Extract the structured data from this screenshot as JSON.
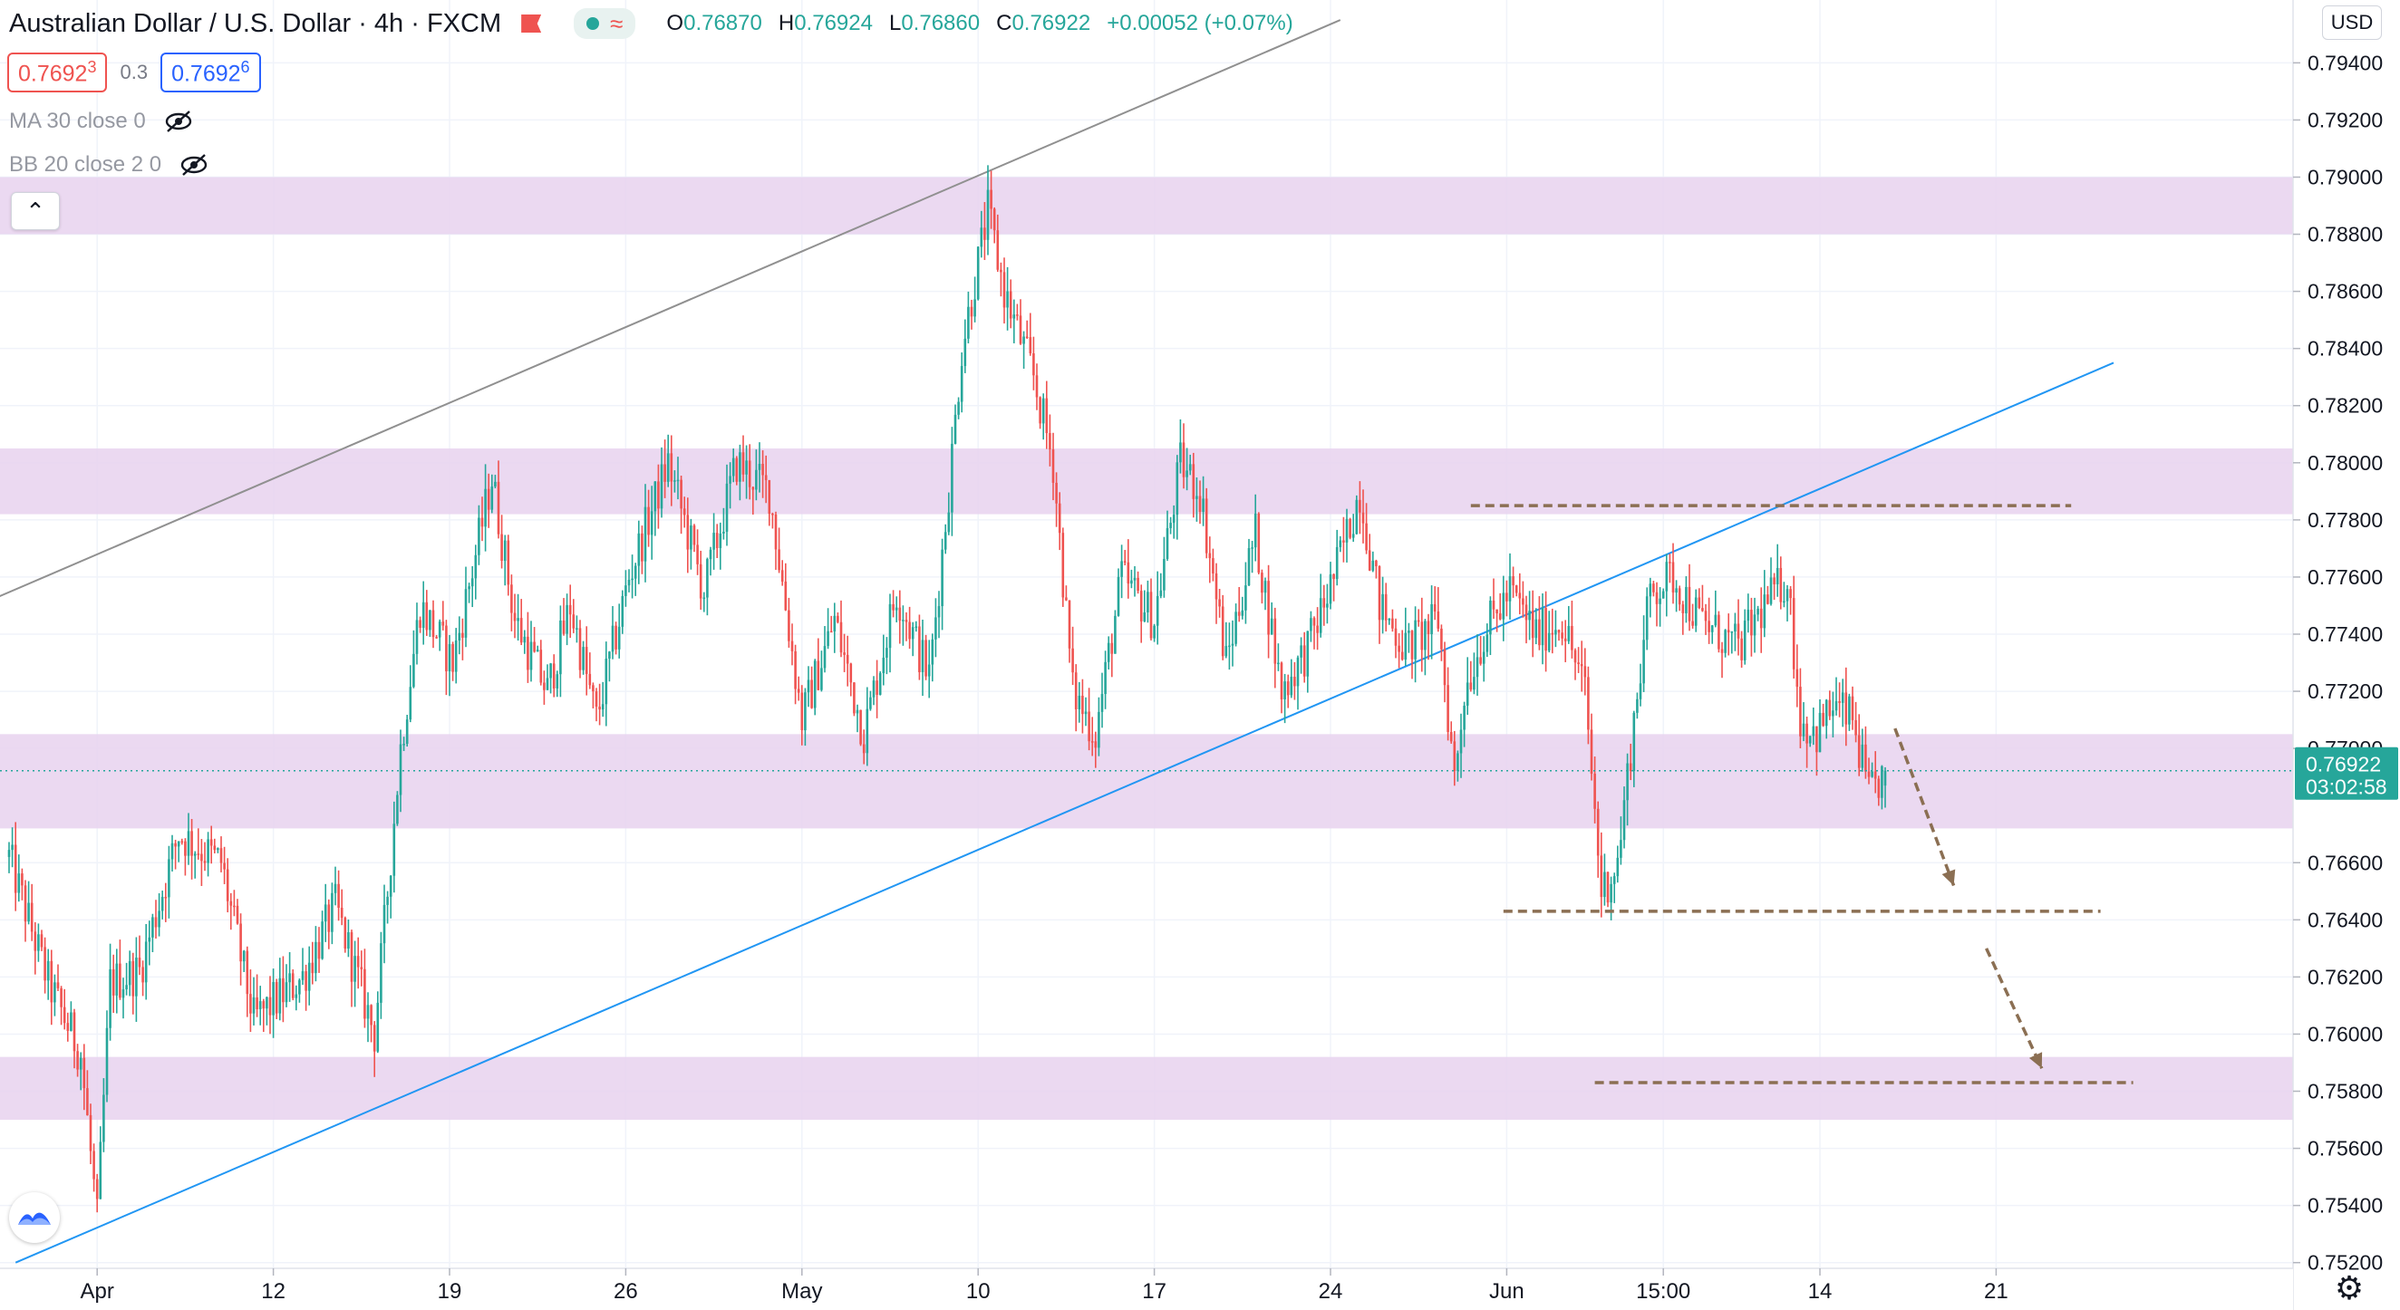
{
  "header": {
    "title": "Australian Dollar / U.S. Dollar",
    "interval": "4h",
    "exchange": "FXCM",
    "sep": "/",
    "ohlc": {
      "o_label": "O",
      "o": "0.76870",
      "h_label": "H",
      "h": "0.76924",
      "l_label": "L",
      "l": "0.76860",
      "c_label": "C",
      "c": "0.76922",
      "change": "+0.00052 (+0.07%)"
    },
    "wave_glyph": "≈"
  },
  "trade": {
    "sell_main": "0.7692",
    "sell_small": "3",
    "spread": "0.3",
    "buy_main": "0.7692",
    "buy_small": "6"
  },
  "indicators": [
    "MA 30 close 0",
    "BB 20 close 2 0"
  ],
  "collapse_glyph": "⌃",
  "axis": {
    "currency": "USD"
  },
  "colors": {
    "up": "#26a69a",
    "down": "#ef5350",
    "zone": "#e8d2ee",
    "trendline_blue": "#2196f3",
    "trendline_gray": "#909090",
    "dashed_levels": "#8b6f53",
    "price_line": "#26a69a"
  },
  "chart_data": {
    "type": "candlestick",
    "title": "Australian Dollar / U.S. Dollar",
    "symbol": "AUD/USD",
    "interval": "4h",
    "y_range": [
      0.7518,
      0.7962
    ],
    "y_ticks": [
      0.752,
      0.754,
      0.756,
      0.758,
      0.76,
      0.762,
      0.764,
      0.766,
      0.77,
      0.772,
      0.774,
      0.776,
      0.778,
      0.78,
      0.782,
      0.784,
      0.786,
      0.788,
      0.79,
      0.792,
      0.794
    ],
    "x_ticks": [
      {
        "label": "Apr",
        "bar": 27
      },
      {
        "label": "12",
        "bar": 81
      },
      {
        "label": "19",
        "bar": 135
      },
      {
        "label": "26",
        "bar": 189
      },
      {
        "label": "May",
        "bar": 243
      },
      {
        "label": "10",
        "bar": 297
      },
      {
        "label": "17",
        "bar": 351
      },
      {
        "label": "24",
        "bar": 405
      },
      {
        "label": "Jun",
        "bar": 459
      },
      {
        "label": "15:00",
        "bar": 507
      },
      {
        "label": "14",
        "bar": 555
      },
      {
        "label": "21",
        "bar": 609
      }
    ],
    "last_price": {
      "value": 0.76922,
      "label": "0.76922",
      "countdown": "03:02:58"
    },
    "key_bars": [
      {
        "bar": 0,
        "price": 0.7662
      },
      {
        "bar": 12,
        "price": 0.7618
      },
      {
        "bar": 22,
        "price": 0.7593
      },
      {
        "bar": 27,
        "price": 0.7535
      },
      {
        "bar": 31,
        "price": 0.7618
      },
      {
        "bar": 40,
        "price": 0.7622
      },
      {
        "bar": 52,
        "price": 0.767
      },
      {
        "bar": 65,
        "price": 0.766
      },
      {
        "bar": 75,
        "price": 0.7605
      },
      {
        "bar": 90,
        "price": 0.762
      },
      {
        "bar": 100,
        "price": 0.7645
      },
      {
        "bar": 112,
        "price": 0.76
      },
      {
        "bar": 120,
        "price": 0.77
      },
      {
        "bar": 126,
        "price": 0.775
      },
      {
        "bar": 136,
        "price": 0.773
      },
      {
        "bar": 148,
        "price": 0.7795
      },
      {
        "bar": 155,
        "price": 0.7745
      },
      {
        "bar": 165,
        "price": 0.772
      },
      {
        "bar": 172,
        "price": 0.775
      },
      {
        "bar": 180,
        "price": 0.771
      },
      {
        "bar": 190,
        "price": 0.776
      },
      {
        "bar": 202,
        "price": 0.78
      },
      {
        "bar": 213,
        "price": 0.7755
      },
      {
        "bar": 223,
        "price": 0.78
      },
      {
        "bar": 233,
        "price": 0.779
      },
      {
        "bar": 243,
        "price": 0.771
      },
      {
        "bar": 253,
        "price": 0.7745
      },
      {
        "bar": 262,
        "price": 0.7705
      },
      {
        "bar": 272,
        "price": 0.7755
      },
      {
        "bar": 282,
        "price": 0.7725
      },
      {
        "bar": 288,
        "price": 0.779
      },
      {
        "bar": 292,
        "price": 0.784
      },
      {
        "bar": 300,
        "price": 0.7888
      },
      {
        "bar": 305,
        "price": 0.786
      },
      {
        "bar": 314,
        "price": 0.783
      },
      {
        "bar": 320,
        "price": 0.78
      },
      {
        "bar": 326,
        "price": 0.772
      },
      {
        "bar": 333,
        "price": 0.7705
      },
      {
        "bar": 341,
        "price": 0.776
      },
      {
        "bar": 351,
        "price": 0.7745
      },
      {
        "bar": 359,
        "price": 0.78
      },
      {
        "bar": 365,
        "price": 0.779
      },
      {
        "bar": 373,
        "price": 0.773
      },
      {
        "bar": 382,
        "price": 0.7775
      },
      {
        "bar": 390,
        "price": 0.772
      },
      {
        "bar": 398,
        "price": 0.7735
      },
      {
        "bar": 406,
        "price": 0.776
      },
      {
        "bar": 414,
        "price": 0.779
      },
      {
        "bar": 420,
        "price": 0.775
      },
      {
        "bar": 428,
        "price": 0.7735
      },
      {
        "bar": 438,
        "price": 0.7745
      },
      {
        "bar": 443,
        "price": 0.769
      },
      {
        "bar": 446,
        "price": 0.772
      },
      {
        "bar": 452,
        "price": 0.774
      },
      {
        "bar": 460,
        "price": 0.7755
      },
      {
        "bar": 468,
        "price": 0.774
      },
      {
        "bar": 476,
        "price": 0.7745
      },
      {
        "bar": 483,
        "price": 0.772
      },
      {
        "bar": 488,
        "price": 0.765
      },
      {
        "bar": 493,
        "price": 0.766
      },
      {
        "bar": 498,
        "price": 0.771
      },
      {
        "bar": 503,
        "price": 0.7755
      },
      {
        "bar": 510,
        "price": 0.776
      },
      {
        "bar": 518,
        "price": 0.7745
      },
      {
        "bar": 530,
        "price": 0.7735
      },
      {
        "bar": 538,
        "price": 0.775
      },
      {
        "bar": 545,
        "price": 0.776
      },
      {
        "bar": 549,
        "price": 0.771
      },
      {
        "bar": 554,
        "price": 0.7705
      },
      {
        "bar": 559,
        "price": 0.7715
      },
      {
        "bar": 565,
        "price": 0.771
      },
      {
        "bar": 570,
        "price": 0.7683
      },
      {
        "bar": 575,
        "price": 0.7692
      }
    ],
    "zones": [
      {
        "low": 0.788,
        "high": 0.79
      },
      {
        "low": 0.7782,
        "high": 0.7805
      },
      {
        "low": 0.7672,
        "high": 0.7705
      },
      {
        "low": 0.757,
        "high": 0.7592
      }
    ],
    "trendlines": [
      {
        "color": "gray",
        "from": {
          "bar": -34,
          "price": 0.7738
        },
        "to": {
          "bar": 408,
          "price": 0.7955
        }
      },
      {
        "color": "blue",
        "from": {
          "bar": 2,
          "price": 0.752
        },
        "to": {
          "bar": 645,
          "price": 0.7835
        }
      },
      {
        "color": "gray",
        "from": {
          "bar": -34,
          "price": 0.7665
        },
        "to": {
          "bar": -21,
          "price": 0.7668
        }
      }
    ],
    "dashed_levels": [
      {
        "price": 0.7785,
        "from_bar": 448,
        "to_bar": 632
      },
      {
        "price": 0.7643,
        "from_bar": 458,
        "to_bar": 641
      },
      {
        "price": 0.7583,
        "from_bar": 486,
        "to_bar": 651
      }
    ],
    "projection_arrows": [
      {
        "from": {
          "bar": 578,
          "price": 0.7707
        },
        "to": {
          "bar": 596,
          "price": 0.7652
        }
      },
      {
        "from": {
          "bar": 606,
          "price": 0.763
        },
        "to": {
          "bar": 623,
          "price": 0.7588
        }
      }
    ]
  }
}
